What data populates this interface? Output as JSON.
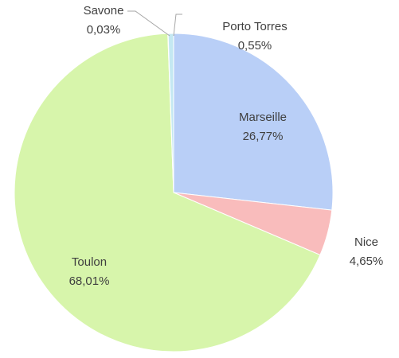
{
  "chart_data": {
    "type": "pie",
    "categories": [
      "Marseille",
      "Nice",
      "Toulon",
      "Savone",
      "Porto Torres"
    ],
    "values": [
      26.77,
      4.65,
      68.01,
      0.03,
      0.55
    ],
    "value_labels": [
      "26,77%",
      "4,65%",
      "68,01%",
      "0,03%",
      "0,55%"
    ],
    "colors": [
      "#b9cff7",
      "#f9bcbc",
      "#d7f5ab",
      "#d9d9d9",
      "#c4e8f2"
    ]
  }
}
